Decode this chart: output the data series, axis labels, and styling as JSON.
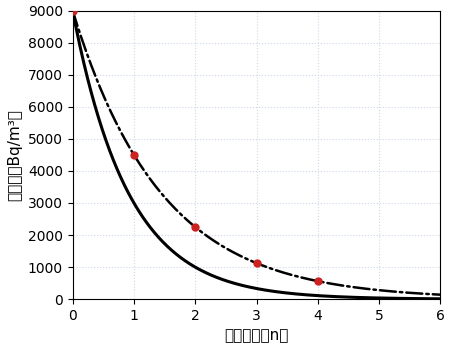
{
  "title": "",
  "xlabel": "排气次数（n）",
  "ylabel": "氡浓度（Bq/m³）",
  "xlim": [
    0,
    6
  ],
  "ylim": [
    0,
    9000
  ],
  "xticks": [
    0,
    1,
    2,
    3,
    4,
    5,
    6
  ],
  "yticks": [
    0,
    1000,
    2000,
    3000,
    4000,
    5000,
    6000,
    7000,
    8000,
    9000
  ],
  "C0": 9000,
  "k1": 1.0986,
  "k2": 0.6931,
  "dot_positions": [
    0,
    1,
    2,
    3,
    4
  ],
  "solid_color": "#000000",
  "dashdot_color": "#000000",
  "dot_color": "#cc2222",
  "background_color": "#ffffff",
  "grid_color": "#c8d4e8",
  "grid_alpha": 0.9,
  "figsize": [
    4.54,
    3.52
  ],
  "dpi": 100,
  "tick_fontsize": 10,
  "label_fontsize": 11
}
